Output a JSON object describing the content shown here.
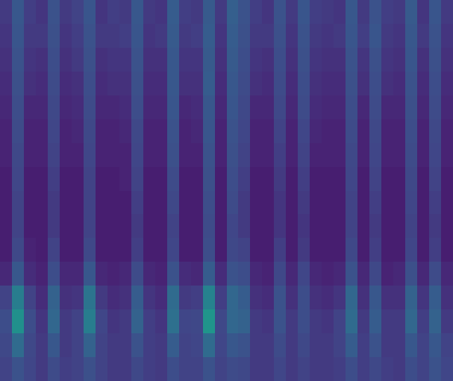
{
  "chart_data": {
    "type": "heatmap",
    "color": "viridis",
    "tick_labels": false,
    "zlim": [
      0,
      1
    ],
    "cells": [
      [
        0.12,
        0.22,
        0.13,
        0.11,
        0.2,
        0.12,
        0.14,
        0.21,
        0.11,
        0.13,
        0.12,
        0.22,
        0.12,
        0.11,
        0.24,
        0.13,
        0.12,
        0.23,
        0.12,
        0.25,
        0.2,
        0.13,
        0.11,
        0.2,
        0.12,
        0.21,
        0.13,
        0.12,
        0.11,
        0.22,
        0.12,
        0.2,
        0.13,
        0.12,
        0.23,
        0.11,
        0.21,
        0.12
      ],
      [
        0.11,
        0.21,
        0.12,
        0.12,
        0.19,
        0.11,
        0.13,
        0.2,
        0.12,
        0.12,
        0.13,
        0.21,
        0.11,
        0.12,
        0.23,
        0.12,
        0.13,
        0.24,
        0.11,
        0.24,
        0.19,
        0.12,
        0.12,
        0.19,
        0.11,
        0.2,
        0.12,
        0.11,
        0.12,
        0.21,
        0.13,
        0.21,
        0.12,
        0.11,
        0.22,
        0.12,
        0.2,
        0.11
      ],
      [
        0.1,
        0.2,
        0.11,
        0.1,
        0.18,
        0.1,
        0.12,
        0.19,
        0.1,
        0.11,
        0.11,
        0.2,
        0.1,
        0.1,
        0.22,
        0.11,
        0.11,
        0.23,
        0.1,
        0.23,
        0.18,
        0.11,
        0.1,
        0.18,
        0.1,
        0.19,
        0.11,
        0.1,
        0.1,
        0.2,
        0.11,
        0.19,
        0.11,
        0.1,
        0.21,
        0.1,
        0.19,
        0.1
      ],
      [
        0.09,
        0.19,
        0.1,
        0.09,
        0.17,
        0.09,
        0.1,
        0.18,
        0.09,
        0.1,
        0.1,
        0.19,
        0.09,
        0.09,
        0.22,
        0.1,
        0.1,
        0.24,
        0.09,
        0.22,
        0.17,
        0.1,
        0.09,
        0.17,
        0.09,
        0.18,
        0.1,
        0.09,
        0.09,
        0.19,
        0.1,
        0.18,
        0.1,
        0.09,
        0.2,
        0.09,
        0.18,
        0.09
      ],
      [
        0.08,
        0.18,
        0.08,
        0.08,
        0.16,
        0.08,
        0.09,
        0.17,
        0.08,
        0.08,
        0.09,
        0.18,
        0.08,
        0.08,
        0.21,
        0.08,
        0.09,
        0.22,
        0.08,
        0.21,
        0.16,
        0.08,
        0.08,
        0.16,
        0.08,
        0.17,
        0.09,
        0.08,
        0.08,
        0.18,
        0.08,
        0.17,
        0.08,
        0.08,
        0.19,
        0.08,
        0.17,
        0.08
      ],
      [
        0.07,
        0.17,
        0.07,
        0.07,
        0.15,
        0.07,
        0.08,
        0.16,
        0.07,
        0.07,
        0.08,
        0.16,
        0.07,
        0.07,
        0.2,
        0.07,
        0.08,
        0.21,
        0.07,
        0.2,
        0.15,
        0.07,
        0.07,
        0.14,
        0.07,
        0.15,
        0.08,
        0.07,
        0.07,
        0.17,
        0.07,
        0.16,
        0.07,
        0.07,
        0.18,
        0.07,
        0.16,
        0.07
      ],
      [
        0.07,
        0.16,
        0.07,
        0.07,
        0.14,
        0.07,
        0.07,
        0.15,
        0.07,
        0.07,
        0.07,
        0.15,
        0.07,
        0.07,
        0.19,
        0.07,
        0.07,
        0.2,
        0.07,
        0.19,
        0.14,
        0.07,
        0.07,
        0.13,
        0.07,
        0.14,
        0.07,
        0.07,
        0.07,
        0.16,
        0.07,
        0.15,
        0.07,
        0.07,
        0.17,
        0.07,
        0.15,
        0.07
      ],
      [
        0.06,
        0.15,
        0.06,
        0.06,
        0.13,
        0.06,
        0.06,
        0.14,
        0.06,
        0.06,
        0.07,
        0.14,
        0.06,
        0.06,
        0.17,
        0.06,
        0.06,
        0.19,
        0.06,
        0.18,
        0.13,
        0.06,
        0.06,
        0.12,
        0.06,
        0.13,
        0.06,
        0.06,
        0.06,
        0.15,
        0.06,
        0.14,
        0.06,
        0.06,
        0.16,
        0.06,
        0.14,
        0.06
      ],
      [
        0.06,
        0.14,
        0.06,
        0.06,
        0.12,
        0.06,
        0.06,
        0.14,
        0.06,
        0.06,
        0.06,
        0.13,
        0.06,
        0.06,
        0.16,
        0.06,
        0.06,
        0.18,
        0.06,
        0.17,
        0.12,
        0.06,
        0.06,
        0.11,
        0.06,
        0.12,
        0.06,
        0.06,
        0.06,
        0.14,
        0.06,
        0.13,
        0.06,
        0.06,
        0.15,
        0.06,
        0.13,
        0.06
      ],
      [
        0.06,
        0.14,
        0.06,
        0.06,
        0.12,
        0.06,
        0.06,
        0.14,
        0.06,
        0.06,
        0.06,
        0.12,
        0.06,
        0.06,
        0.14,
        0.06,
        0.06,
        0.17,
        0.06,
        0.15,
        0.12,
        0.06,
        0.06,
        0.11,
        0.06,
        0.11,
        0.06,
        0.06,
        0.06,
        0.14,
        0.06,
        0.12,
        0.06,
        0.06,
        0.14,
        0.06,
        0.12,
        0.06
      ],
      [
        0.06,
        0.16,
        0.07,
        0.06,
        0.14,
        0.06,
        0.06,
        0.16,
        0.06,
        0.06,
        0.06,
        0.13,
        0.06,
        0.06,
        0.15,
        0.06,
        0.06,
        0.18,
        0.06,
        0.16,
        0.14,
        0.06,
        0.06,
        0.13,
        0.06,
        0.12,
        0.06,
        0.06,
        0.06,
        0.16,
        0.06,
        0.13,
        0.06,
        0.06,
        0.15,
        0.06,
        0.13,
        0.06
      ],
      [
        0.08,
        0.22,
        0.09,
        0.07,
        0.18,
        0.08,
        0.08,
        0.22,
        0.08,
        0.07,
        0.08,
        0.17,
        0.08,
        0.07,
        0.2,
        0.09,
        0.08,
        0.24,
        0.09,
        0.2,
        0.18,
        0.08,
        0.07,
        0.16,
        0.08,
        0.15,
        0.08,
        0.07,
        0.08,
        0.2,
        0.08,
        0.16,
        0.07,
        0.08,
        0.19,
        0.08,
        0.17,
        0.08
      ],
      [
        0.14,
        0.38,
        0.14,
        0.09,
        0.26,
        0.1,
        0.11,
        0.34,
        0.12,
        0.09,
        0.1,
        0.24,
        0.11,
        0.09,
        0.3,
        0.12,
        0.13,
        0.4,
        0.13,
        0.28,
        0.24,
        0.1,
        0.09,
        0.2,
        0.1,
        0.18,
        0.1,
        0.09,
        0.11,
        0.28,
        0.1,
        0.22,
        0.1,
        0.1,
        0.26,
        0.11,
        0.24,
        0.1
      ],
      [
        0.18,
        0.46,
        0.18,
        0.11,
        0.28,
        0.12,
        0.14,
        0.38,
        0.15,
        0.11,
        0.12,
        0.26,
        0.13,
        0.11,
        0.32,
        0.15,
        0.16,
        0.48,
        0.16,
        0.28,
        0.26,
        0.12,
        0.11,
        0.2,
        0.12,
        0.18,
        0.12,
        0.11,
        0.14,
        0.3,
        0.12,
        0.24,
        0.12,
        0.12,
        0.28,
        0.13,
        0.26,
        0.12
      ],
      [
        0.16,
        0.3,
        0.16,
        0.12,
        0.22,
        0.12,
        0.14,
        0.26,
        0.14,
        0.12,
        0.12,
        0.2,
        0.13,
        0.12,
        0.24,
        0.14,
        0.15,
        0.3,
        0.15,
        0.22,
        0.2,
        0.12,
        0.12,
        0.17,
        0.12,
        0.16,
        0.12,
        0.12,
        0.14,
        0.24,
        0.13,
        0.2,
        0.12,
        0.12,
        0.22,
        0.14,
        0.22,
        0.14
      ],
      [
        0.14,
        0.2,
        0.15,
        0.12,
        0.17,
        0.13,
        0.14,
        0.19,
        0.14,
        0.12,
        0.12,
        0.16,
        0.13,
        0.12,
        0.18,
        0.14,
        0.14,
        0.2,
        0.14,
        0.17,
        0.16,
        0.12,
        0.12,
        0.15,
        0.12,
        0.14,
        0.12,
        0.12,
        0.13,
        0.18,
        0.13,
        0.16,
        0.13,
        0.12,
        0.18,
        0.14,
        0.2,
        0.15
      ]
    ]
  }
}
